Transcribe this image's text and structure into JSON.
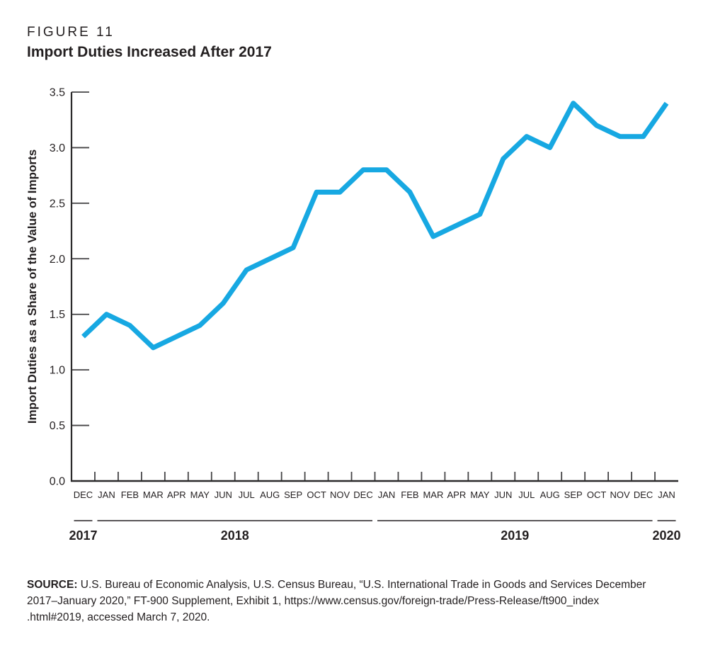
{
  "figure": {
    "label": "FIGURE 11",
    "title": "Import Duties Increased After 2017"
  },
  "chart_data": {
    "type": "line",
    "categories": [
      "DEC",
      "JAN",
      "FEB",
      "MAR",
      "APR",
      "MAY",
      "JUN",
      "JUL",
      "AUG",
      "SEP",
      "OCT",
      "NOV",
      "DEC",
      "JAN",
      "FEB",
      "MAR",
      "APR",
      "MAY",
      "JUN",
      "JUL",
      "AUG",
      "SEP",
      "OCT",
      "NOV",
      "DEC",
      "JAN"
    ],
    "values": [
      1.3,
      1.5,
      1.4,
      1.2,
      1.3,
      1.4,
      1.6,
      1.9,
      2.0,
      2.1,
      2.6,
      2.6,
      2.8,
      2.8,
      2.6,
      2.2,
      2.3,
      2.4,
      2.9,
      3.1,
      3.0,
      3.4,
      3.2,
      3.1,
      3.1,
      3.4
    ],
    "title": "Import Duties Increased After 2017",
    "xlabel": "",
    "ylabel": "Import Duties as a Share of the Value of Imports",
    "ylim": [
      0,
      3.5
    ],
    "yticks": [
      0.0,
      0.5,
      1.0,
      1.5,
      2.0,
      2.5,
      3.0,
      3.5
    ],
    "grid": false,
    "legend": "none",
    "year_groups": [
      {
        "label": "2017",
        "start": 0,
        "end": 0
      },
      {
        "label": "2018",
        "start": 1,
        "end": 12
      },
      {
        "label": "2019",
        "start": 13,
        "end": 24
      },
      {
        "label": "2020",
        "start": 25,
        "end": 25
      }
    ]
  },
  "colors": {
    "line": "#17A8E2",
    "axis": "#2b2a2b",
    "tick": "#454446",
    "text": "#231f20",
    "year_rule": "#231f20"
  },
  "source": {
    "label": "SOURCE:",
    "lines": [
      " U.S. Bureau of Economic Analysis, U.S. Census Bureau, “U.S. International Trade in Goods and Services December",
      "2017–January 2020,” FT-900 Supplement, Exhibit 1, https://www.census.gov/foreign-trade/Press-Release/ft900_index",
      ".html#2019, accessed March 7, 2020."
    ]
  }
}
